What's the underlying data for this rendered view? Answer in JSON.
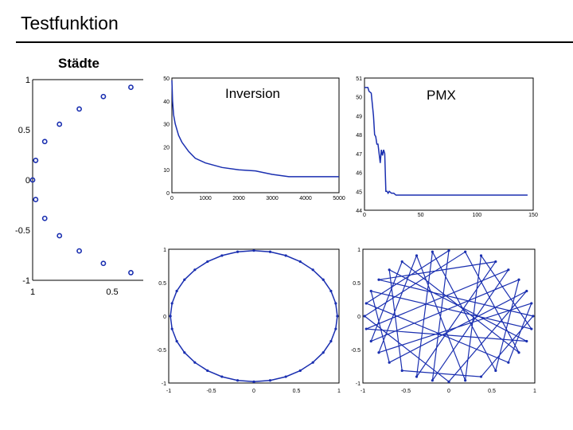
{
  "slide": {
    "title": "Testfunktion"
  },
  "labels": {
    "cities": "Städte",
    "inversion": "Inversion",
    "pmx": "PMX"
  },
  "colors": {
    "series": "#1a2fb0",
    "axis": "#000000"
  },
  "chart_data": [
    {
      "id": "cities",
      "type": "scatter",
      "title": "Städte",
      "xlim": [
        1,
        0.33
      ],
      "ylim": [
        -1,
        1
      ],
      "x_ticks": [
        "1",
        "0.5"
      ],
      "y_ticks": [
        "1",
        "0.5",
        "0",
        "-0.5",
        "-1"
      ],
      "note": "Points lie on the unit circle; only the left part of the circle is visible",
      "series": [
        {
          "marker": "open-circle",
          "points_on_unit_circle": true,
          "count": 32
        }
      ]
    },
    {
      "id": "inversion-convergence",
      "type": "line",
      "xlim": [
        0,
        5000
      ],
      "ylim": [
        0,
        50
      ],
      "x_ticks": [
        "0",
        "1000",
        "2000",
        "3000",
        "4000",
        "5000"
      ],
      "y_ticks": [
        "50",
        "40",
        "30",
        "20",
        "10",
        "0"
      ],
      "series": [
        {
          "x": [
            0,
            20,
            50,
            100,
            200,
            300,
            500,
            700,
            1000,
            1500,
            2000,
            2500,
            3000,
            3500,
            4000,
            5000
          ],
          "y": [
            49,
            40,
            34,
            30,
            25,
            22,
            18,
            15,
            13,
            11,
            10,
            9.5,
            8,
            7,
            7,
            7
          ]
        }
      ]
    },
    {
      "id": "pmx-convergence",
      "type": "line",
      "xlim": [
        0,
        150
      ],
      "ylim": [
        44,
        51
      ],
      "x_ticks": [
        "0",
        "50",
        "100",
        "150"
      ],
      "y_ticks": [
        "51",
        "50",
        "49",
        "48",
        "47",
        "46",
        "45",
        "44"
      ],
      "series": [
        {
          "x": [
            0,
            3,
            4,
            6,
            8,
            9,
            10,
            11,
            12,
            13,
            14,
            15,
            16,
            17,
            18,
            19,
            20,
            21,
            22,
            24,
            26,
            28,
            30,
            35,
            145
          ],
          "y": [
            50.5,
            50.5,
            50.3,
            50.2,
            49.0,
            48.0,
            47.9,
            47.5,
            47.5,
            47.0,
            46.5,
            47.2,
            46.9,
            47.2,
            47.0,
            45.0,
            45.0,
            44.9,
            45.0,
            44.9,
            44.9,
            44.8,
            44.8,
            44.8,
            44.8
          ]
        }
      ]
    },
    {
      "id": "inversion-tour",
      "type": "line",
      "xlim": [
        -1,
        1
      ],
      "ylim": [
        -1,
        1
      ],
      "x_ticks": [
        "-1",
        "-0.5",
        "0",
        "0.5",
        "1"
      ],
      "y_ticks": [
        "1",
        "0.5",
        "0",
        "-0.5",
        "-1"
      ],
      "note": "Tour visiting the circle cities in order (optimal tour)"
    },
    {
      "id": "pmx-tour",
      "type": "line",
      "xlim": [
        -1,
        1
      ],
      "ylim": [
        -1,
        1
      ],
      "x_ticks": [
        "-1",
        "-0.5",
        "0",
        "0.5",
        "1"
      ],
      "y_ticks": [
        "1",
        "0.5",
        "0",
        "-0.5",
        "-1"
      ],
      "note": "Tour visiting the circle cities in scrambled order"
    }
  ]
}
